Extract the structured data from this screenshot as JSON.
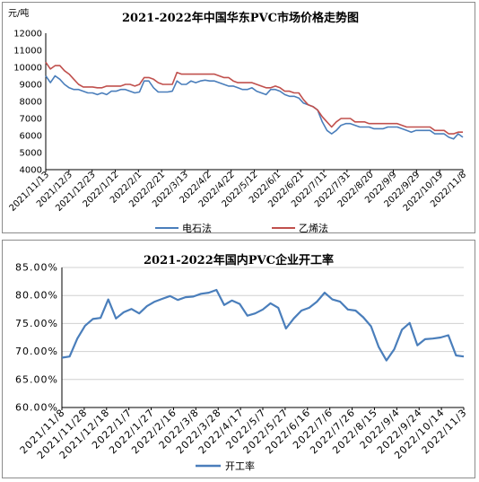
{
  "chart_data": [
    {
      "type": "line",
      "title": "2021-2022年中国华东PVC市场价格走势图",
      "ylabel": "元/吨",
      "ylim": [
        4000,
        12000
      ],
      "yticks": [
        "4000",
        "5000",
        "6000",
        "7000",
        "8000",
        "9000",
        "10000",
        "11000",
        "12000"
      ],
      "xticks": [
        "2021/11/13",
        "2021/12/3",
        "2021/12/23",
        "2022/1/12",
        "2022/2/1",
        "2022/2/21",
        "2022/3/13",
        "2022/4/2",
        "2022/4/22",
        "2022/5/12",
        "2022/6/1",
        "2022/6/21",
        "2022/7/11",
        "2022/7/31",
        "2022/8/20",
        "2022/9/9",
        "2022/9/29",
        "2022/10/19",
        "2022/11/8"
      ],
      "legend_position": "bottom",
      "series": [
        {
          "name": "电石法",
          "color": "#4a7ebb",
          "values": [
            9500,
            9100,
            9500,
            9300,
            9000,
            8800,
            8700,
            8700,
            8600,
            8500,
            8500,
            8400,
            8500,
            8400,
            8600,
            8600,
            8700,
            8700,
            8600,
            8500,
            8550,
            9200,
            9200,
            8800,
            8550,
            8550,
            8550,
            8600,
            9200,
            9000,
            9000,
            9200,
            9100,
            9200,
            9250,
            9200,
            9200,
            9100,
            9000,
            8900,
            8900,
            8800,
            8700,
            8700,
            8800,
            8600,
            8500,
            8400,
            8700,
            8700,
            8600,
            8400,
            8300,
            8300,
            8200,
            7900,
            7800,
            7700,
            7500,
            6800,
            6300,
            6100,
            6300,
            6600,
            6700,
            6700,
            6600,
            6500,
            6500,
            6500,
            6400,
            6400,
            6400,
            6500,
            6500,
            6500,
            6400,
            6300,
            6200,
            6300,
            6300,
            6300,
            6300,
            6100,
            6100,
            6100,
            5900,
            5800,
            6100,
            5900
          ]
        },
        {
          "name": "乙烯法",
          "color": "#c0504d",
          "values": [
            10300,
            9900,
            10100,
            10100,
            9800,
            9600,
            9300,
            9000,
            8850,
            8850,
            8850,
            8800,
            8800,
            8900,
            8900,
            8900,
            8900,
            9000,
            9000,
            8900,
            9000,
            9400,
            9400,
            9300,
            9100,
            9000,
            9000,
            9000,
            9700,
            9600,
            9600,
            9600,
            9600,
            9600,
            9600,
            9600,
            9600,
            9500,
            9400,
            9400,
            9200,
            9100,
            9100,
            9100,
            9100,
            9000,
            8900,
            8800,
            8800,
            8900,
            8800,
            8600,
            8600,
            8500,
            8500,
            8100,
            7800,
            7700,
            7500,
            7100,
            6800,
            6500,
            6800,
            7000,
            7000,
            7000,
            6800,
            6800,
            6800,
            6700,
            6700,
            6700,
            6700,
            6700,
            6700,
            6700,
            6600,
            6500,
            6500,
            6500,
            6500,
            6500,
            6500,
            6300,
            6300,
            6300,
            6100,
            6100,
            6200,
            6200
          ]
        }
      ]
    },
    {
      "type": "line",
      "title": "2021-2022年国内PVC企业开工率",
      "ylim": [
        60,
        85
      ],
      "yticks": [
        "60.00%",
        "65.00%",
        "70.00%",
        "75.00%",
        "80.00%",
        "85.00%"
      ],
      "xticks": [
        "2021/11/8",
        "2021/11/28",
        "2021/12/18",
        "2022/1/7",
        "2022/1/27",
        "2022/2/16",
        "2022/3/8",
        "2022/3/28",
        "2022/4/17",
        "2022/5/7",
        "2022/5/27",
        "2022/6/16",
        "2022/7/6",
        "2022/7/26",
        "2022/8/15",
        "2022/9/4",
        "2022/9/24",
        "2022/10/14",
        "2022/11/3"
      ],
      "legend_position": "bottom",
      "series": [
        {
          "name": "开工率",
          "color": "#4a7ebb",
          "values": [
            68.9,
            69.1,
            72.3,
            74.6,
            75.8,
            76.0,
            79.3,
            75.9,
            77.0,
            77.6,
            76.8,
            78.1,
            78.9,
            79.4,
            79.9,
            79.2,
            79.7,
            79.8,
            80.3,
            80.5,
            81.0,
            78.3,
            79.1,
            78.5,
            76.4,
            76.8,
            77.5,
            78.6,
            77.8,
            74.1,
            75.9,
            77.3,
            77.8,
            78.9,
            80.5,
            79.3,
            78.9,
            77.5,
            77.3,
            76.1,
            74.5,
            70.8,
            68.4,
            70.4,
            73.9,
            75.1,
            71.1,
            72.2,
            72.3,
            72.5,
            72.9,
            69.3,
            69.1
          ]
        }
      ]
    }
  ]
}
